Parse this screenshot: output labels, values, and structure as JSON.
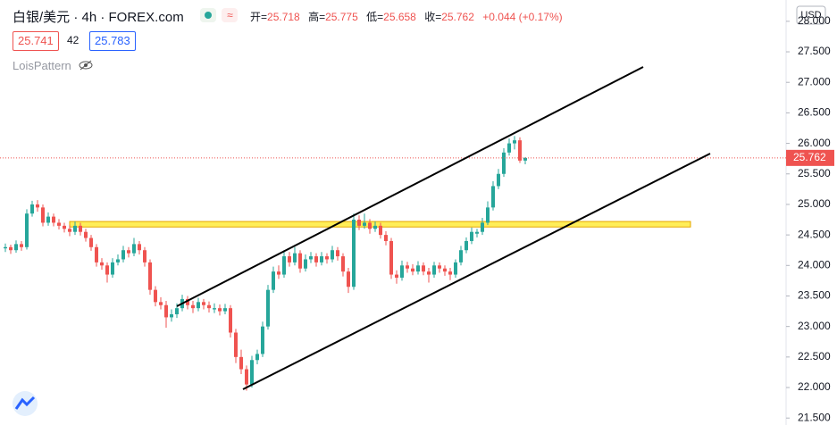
{
  "header": {
    "symbol": "白银/美元 · 4h · FOREX.com",
    "ohlc": [
      {
        "label": "开=",
        "value": "25.718"
      },
      {
        "label": "高=",
        "value": "25.775"
      },
      {
        "label": "低=",
        "value": "25.658"
      },
      {
        "label": "收=",
        "value": "25.762"
      }
    ],
    "change": "+0.044 (+0.17%)",
    "bid": "25.741",
    "spread": "42",
    "ask": "25.783",
    "indicator": "LoisPattern"
  },
  "chart_data": {
    "type": "candlestick",
    "currency": "USD",
    "price_label": "25.762",
    "up_color": "#26a69a",
    "down_color": "#ef5350",
    "grid": false,
    "ylim": [
      21.386,
      28.349
    ],
    "yticks": [
      {
        "value": 21.5,
        "label": "21.500"
      },
      {
        "value": 22,
        "label": "22.000"
      },
      {
        "value": 22.5,
        "label": "22.500"
      },
      {
        "value": 23,
        "label": "23.000"
      },
      {
        "value": 23.5,
        "label": "23.500"
      },
      {
        "value": 24,
        "label": "24.000"
      },
      {
        "value": 24.5,
        "label": "24.500"
      },
      {
        "value": 25,
        "label": "25.000"
      },
      {
        "value": 25.5,
        "label": "25.500"
      },
      {
        "value": 26,
        "label": "26.000"
      },
      {
        "value": 26.5,
        "label": "26.500"
      },
      {
        "value": 27,
        "label": "27.000"
      },
      {
        "value": 27.5,
        "label": "27.500"
      },
      {
        "value": 28,
        "label": "28.000"
      }
    ],
    "zone": [
      24.63,
      24.72
    ],
    "candles": [
      [
        24.28,
        24.36,
        24.22,
        24.3
      ],
      [
        24.3,
        24.34,
        24.19,
        24.25
      ],
      [
        24.25,
        24.41,
        24.21,
        24.35
      ],
      [
        24.35,
        24.4,
        24.24,
        24.3
      ],
      [
        24.3,
        24.92,
        24.26,
        24.85
      ],
      [
        24.85,
        25.06,
        24.8,
        25.0
      ],
      [
        25.0,
        25.07,
        24.88,
        24.95
      ],
      [
        24.95,
        25.0,
        24.64,
        24.7
      ],
      [
        24.7,
        24.87,
        24.65,
        24.8
      ],
      [
        24.8,
        24.85,
        24.64,
        24.7
      ],
      [
        24.7,
        24.76,
        24.59,
        24.65
      ],
      [
        24.65,
        24.7,
        24.54,
        24.6
      ],
      [
        24.6,
        24.66,
        24.48,
        24.55
      ],
      [
        24.55,
        24.72,
        24.5,
        24.65
      ],
      [
        24.65,
        24.7,
        24.49,
        24.55
      ],
      [
        24.55,
        24.6,
        24.39,
        24.45
      ],
      [
        24.45,
        24.5,
        24.24,
        24.3
      ],
      [
        24.3,
        24.35,
        23.98,
        24.05
      ],
      [
        24.05,
        24.12,
        23.93,
        24.0
      ],
      [
        24.0,
        24.05,
        23.72,
        23.85
      ],
      [
        23.85,
        24.12,
        23.8,
        24.05
      ],
      [
        24.05,
        24.18,
        24.0,
        24.1
      ],
      [
        24.1,
        24.32,
        24.05,
        24.25
      ],
      [
        24.25,
        24.3,
        24.13,
        24.2
      ],
      [
        24.2,
        24.45,
        24.15,
        24.35
      ],
      [
        24.35,
        24.4,
        24.18,
        24.25
      ],
      [
        24.25,
        24.3,
        23.98,
        24.05
      ],
      [
        24.05,
        24.1,
        23.52,
        23.6
      ],
      [
        23.6,
        23.66,
        23.33,
        23.4
      ],
      [
        23.4,
        23.48,
        23.28,
        23.35
      ],
      [
        23.35,
        23.42,
        22.98,
        23.15
      ],
      [
        23.15,
        23.28,
        23.08,
        23.2
      ],
      [
        23.2,
        23.38,
        23.14,
        23.3
      ],
      [
        23.3,
        23.52,
        23.25,
        23.45
      ],
      [
        23.45,
        23.5,
        23.28,
        23.35
      ],
      [
        23.35,
        23.42,
        23.22,
        23.3
      ],
      [
        23.3,
        23.47,
        23.25,
        23.4
      ],
      [
        23.4,
        23.45,
        23.28,
        23.35
      ],
      [
        23.35,
        23.41,
        23.23,
        23.3
      ],
      [
        23.28,
        23.38,
        23.22,
        23.3
      ],
      [
        23.3,
        23.36,
        23.18,
        23.25
      ],
      [
        23.25,
        23.37,
        23.2,
        23.3
      ],
      [
        23.3,
        23.35,
        22.82,
        22.9
      ],
      [
        22.9,
        22.96,
        22.4,
        22.5
      ],
      [
        22.5,
        22.62,
        22.22,
        22.3
      ],
      [
        22.3,
        22.36,
        21.95,
        22.05
      ],
      [
        22.05,
        22.52,
        22.0,
        22.45
      ],
      [
        22.45,
        22.62,
        22.38,
        22.55
      ],
      [
        22.55,
        23.08,
        22.5,
        23.0
      ],
      [
        23.0,
        23.68,
        22.95,
        23.6
      ],
      [
        23.6,
        23.98,
        23.55,
        23.9
      ],
      [
        23.9,
        24.0,
        23.78,
        23.85
      ],
      [
        23.85,
        24.25,
        23.8,
        24.15
      ],
      [
        24.15,
        24.22,
        23.98,
        24.05
      ],
      [
        24.05,
        24.3,
        24.0,
        24.2
      ],
      [
        24.2,
        24.25,
        23.88,
        23.95
      ],
      [
        23.95,
        24.18,
        23.9,
        24.1
      ],
      [
        24.1,
        24.22,
        24.04,
        24.15
      ],
      [
        24.15,
        24.2,
        23.98,
        24.05
      ],
      [
        24.05,
        24.22,
        24.0,
        24.15
      ],
      [
        24.15,
        24.2,
        24.03,
        24.1
      ],
      [
        24.1,
        24.32,
        24.05,
        24.25
      ],
      [
        24.25,
        24.3,
        24.08,
        24.15
      ],
      [
        24.15,
        24.2,
        23.82,
        23.9
      ],
      [
        23.9,
        23.96,
        23.55,
        23.65
      ],
      [
        23.65,
        24.85,
        23.6,
        24.75
      ],
      [
        24.75,
        24.82,
        24.58,
        24.65
      ],
      [
        24.65,
        24.85,
        24.6,
        24.7
      ],
      [
        24.7,
        24.76,
        24.52,
        24.6
      ],
      [
        24.6,
        24.72,
        24.55,
        24.65
      ],
      [
        24.65,
        24.7,
        24.44,
        24.5
      ],
      [
        24.5,
        24.56,
        24.33,
        24.4
      ],
      [
        24.4,
        24.45,
        23.78,
        23.85
      ],
      [
        23.85,
        23.92,
        23.7,
        23.8
      ],
      [
        23.8,
        24.08,
        23.75,
        24.0
      ],
      [
        24.0,
        24.06,
        23.88,
        23.95
      ],
      [
        23.95,
        24.02,
        23.84,
        23.9
      ],
      [
        23.9,
        24.07,
        23.85,
        24.0
      ],
      [
        24.0,
        24.05,
        23.84,
        23.9
      ],
      [
        23.9,
        23.96,
        23.72,
        23.85
      ],
      [
        23.85,
        24.06,
        23.8,
        24.0
      ],
      [
        24.0,
        24.05,
        23.88,
        23.95
      ],
      [
        23.95,
        24.0,
        23.83,
        23.9
      ],
      [
        23.9,
        23.96,
        23.76,
        23.85
      ],
      [
        23.85,
        24.1,
        23.8,
        24.05
      ],
      [
        24.05,
        24.32,
        24.0,
        24.25
      ],
      [
        24.25,
        24.46,
        24.2,
        24.4
      ],
      [
        24.4,
        24.62,
        24.35,
        24.55
      ],
      [
        24.52,
        24.6,
        24.46,
        24.55
      ],
      [
        24.55,
        24.78,
        24.5,
        24.7
      ],
      [
        24.7,
        25.05,
        24.66,
        24.95
      ],
      [
        24.95,
        25.38,
        24.9,
        25.3
      ],
      [
        25.3,
        25.58,
        25.25,
        25.5
      ],
      [
        25.5,
        25.92,
        25.45,
        25.85
      ],
      [
        25.85,
        26.08,
        25.8,
        26.0
      ],
      [
        26.0,
        26.12,
        25.9,
        26.05
      ],
      [
        26.05,
        26.1,
        25.68,
        25.718
      ],
      [
        25.718,
        25.775,
        25.658,
        25.762
      ]
    ]
  }
}
